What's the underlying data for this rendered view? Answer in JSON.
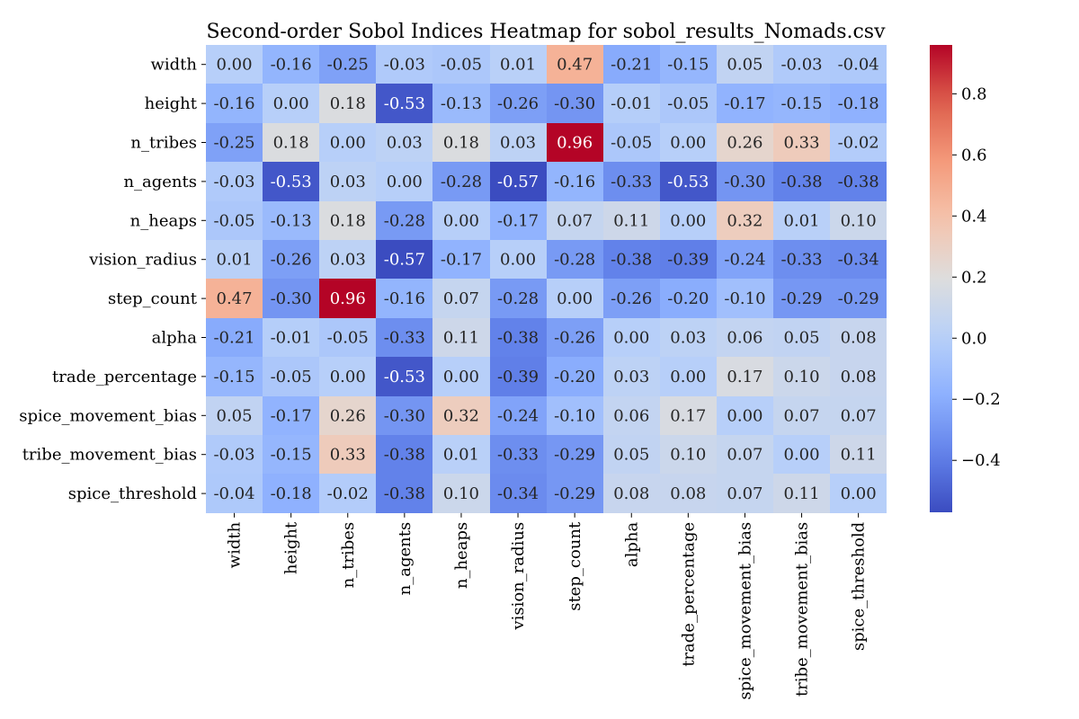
{
  "chart_data": {
    "type": "heatmap",
    "title": "Second-order Sobol Indices Heatmap for sobol_results_Nomads.csv",
    "xlabel": "",
    "ylabel": "",
    "rows": [
      "width",
      "height",
      "n_tribes",
      "n_agents",
      "n_heaps",
      "vision_radius",
      "step_count",
      "alpha",
      "trade_percentage",
      "spice_movement_bias",
      "tribe_movement_bias",
      "spice_threshold"
    ],
    "columns": [
      "width",
      "height",
      "n_tribes",
      "n_agents",
      "n_heaps",
      "vision_radius",
      "step_count",
      "alpha",
      "trade_percentage",
      "spice_movement_bias",
      "tribe_movement_bias",
      "spice_threshold"
    ],
    "values": [
      [
        0.0,
        -0.16,
        -0.25,
        -0.03,
        -0.05,
        0.01,
        0.47,
        -0.21,
        -0.15,
        0.05,
        -0.03,
        -0.04
      ],
      [
        -0.16,
        0.0,
        0.18,
        -0.53,
        -0.13,
        -0.26,
        -0.3,
        -0.01,
        -0.05,
        -0.17,
        -0.15,
        -0.18
      ],
      [
        -0.25,
        0.18,
        0.0,
        0.03,
        0.18,
        0.03,
        0.96,
        -0.05,
        0.0,
        0.26,
        0.33,
        -0.02
      ],
      [
        -0.03,
        -0.53,
        0.03,
        0.0,
        -0.28,
        -0.57,
        -0.16,
        -0.33,
        -0.53,
        -0.3,
        -0.38,
        -0.38
      ],
      [
        -0.05,
        -0.13,
        0.18,
        -0.28,
        0.0,
        -0.17,
        0.07,
        0.11,
        0.0,
        0.32,
        0.01,
        0.1
      ],
      [
        0.01,
        -0.26,
        0.03,
        -0.57,
        -0.17,
        0.0,
        -0.28,
        -0.38,
        -0.39,
        -0.24,
        -0.33,
        -0.34
      ],
      [
        0.47,
        -0.3,
        0.96,
        -0.16,
        0.07,
        -0.28,
        0.0,
        -0.26,
        -0.2,
        -0.1,
        -0.29,
        -0.29
      ],
      [
        -0.21,
        -0.01,
        -0.05,
        -0.33,
        0.11,
        -0.38,
        -0.26,
        0.0,
        0.03,
        0.06,
        0.05,
        0.08
      ],
      [
        -0.15,
        -0.05,
        0.0,
        -0.53,
        0.0,
        -0.39,
        -0.2,
        0.03,
        0.0,
        0.17,
        0.1,
        0.08
      ],
      [
        0.05,
        -0.17,
        0.26,
        -0.3,
        0.32,
        -0.24,
        -0.1,
        0.06,
        0.17,
        0.0,
        0.07,
        0.07
      ],
      [
        -0.03,
        -0.15,
        0.33,
        -0.38,
        0.01,
        -0.33,
        -0.29,
        0.05,
        0.1,
        0.07,
        0.0,
        0.11
      ],
      [
        -0.04,
        -0.18,
        -0.02,
        -0.38,
        0.1,
        -0.34,
        -0.29,
        0.08,
        0.08,
        0.07,
        0.11,
        0.0
      ]
    ],
    "value_format": "0.00",
    "colormap": "coolwarm",
    "color_range": [
      -0.57,
      0.96
    ],
    "colorbar_ticks": [
      -0.4,
      -0.2,
      0.0,
      0.2,
      0.4,
      0.6,
      0.8
    ],
    "colorbar_tick_labels": [
      "−0.4",
      "−0.2",
      "0.0",
      "0.2",
      "0.4",
      "0.6",
      "0.8"
    ],
    "colorbar_placement": "right",
    "grid": false
  }
}
